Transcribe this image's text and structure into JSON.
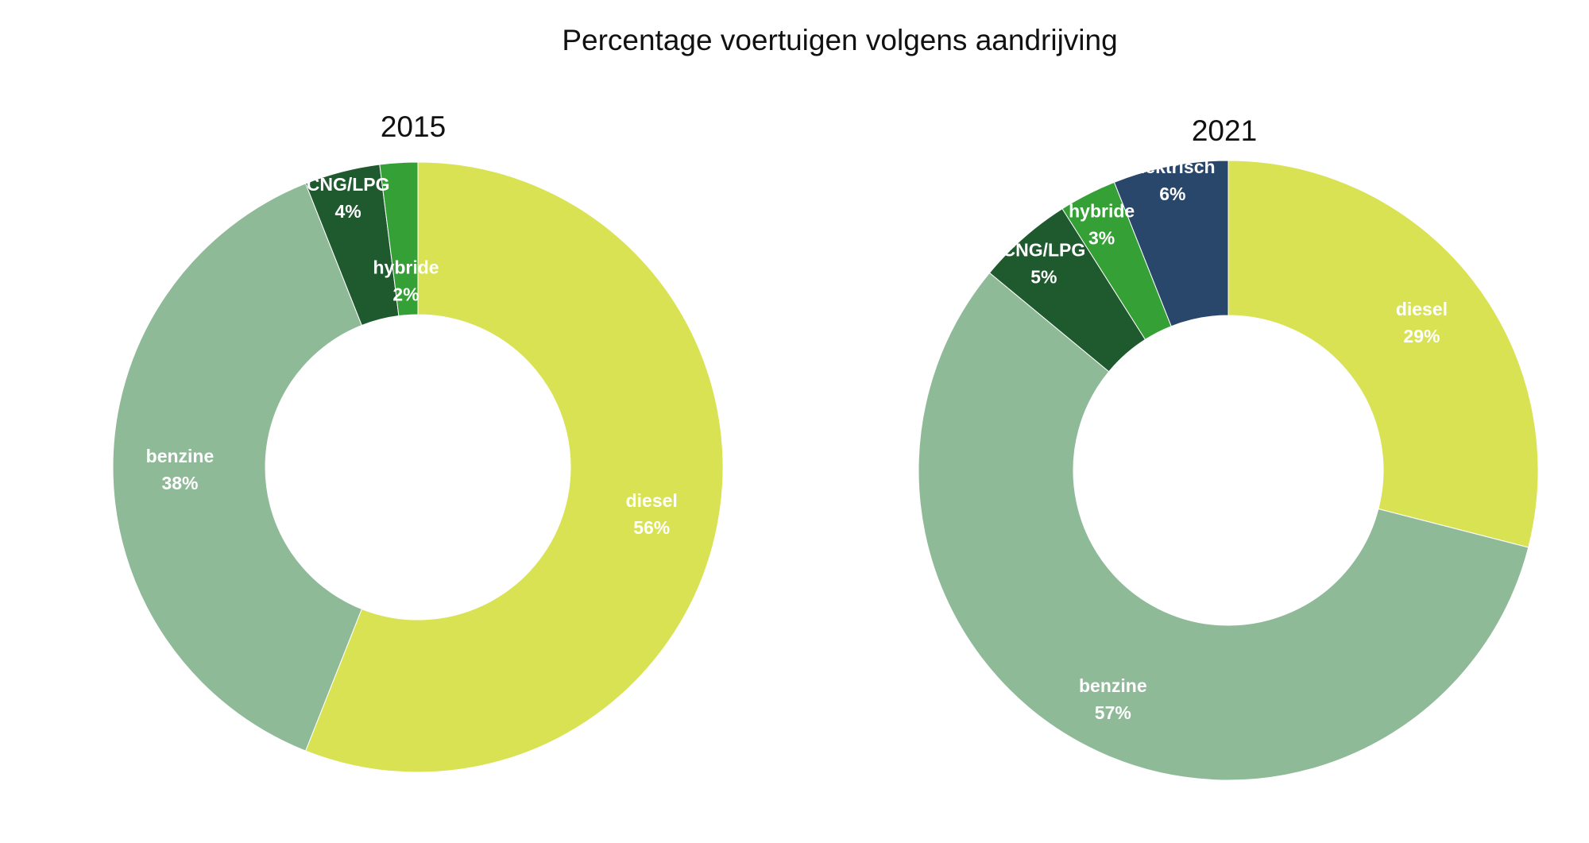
{
  "figure_title": "Percentage voertuigen volgens aandrijving",
  "colors": {
    "diesel": "#d9e253",
    "benzine": "#8fba98",
    "CNG/LPG": "#1e5a2e",
    "hybride": "#34a035",
    "elektrisch": "#29476b"
  },
  "chart_data": [
    {
      "type": "pie",
      "title": "2015",
      "categories": [
        "diesel",
        "benzine",
        "CNG/LPG",
        "hybride"
      ],
      "values": [
        56,
        38,
        4,
        2
      ],
      "labels": [
        "diesel",
        "benzine",
        "CNG/LPG",
        "hybride"
      ],
      "value_labels": [
        "56%",
        "38%",
        "4%",
        "2%"
      ]
    },
    {
      "type": "pie",
      "title": "2021",
      "categories": [
        "diesel",
        "benzine",
        "CNG/LPG",
        "hybride",
        "elektrisch"
      ],
      "values": [
        29,
        57,
        5,
        3,
        6
      ],
      "labels": [
        "diesel",
        "benzine",
        "CNG/LPG",
        "hybride",
        "elektrisch"
      ],
      "value_labels": [
        "29%",
        "57%",
        "5%",
        "3%",
        "6%"
      ]
    }
  ]
}
